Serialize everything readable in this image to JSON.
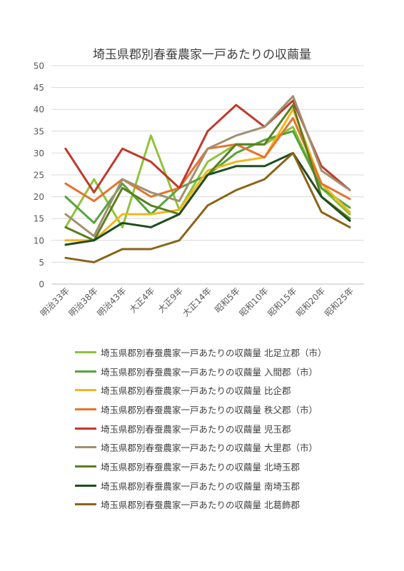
{
  "chart_data": {
    "type": "line",
    "title": "埼玉県郡別春蚕農家一戸あたりの収繭量",
    "xlabel": "",
    "ylabel": "",
    "ylim": [
      0,
      50
    ],
    "yticks": [
      0,
      5,
      10,
      15,
      20,
      25,
      30,
      35,
      40,
      45,
      50
    ],
    "grid": true,
    "legend_position": "bottom",
    "categories": [
      "明治33年",
      "明治38年",
      "明治43年",
      "大正4年",
      "大正9年",
      "大正14年",
      "昭和5年",
      "昭和10年",
      "昭和15年",
      "昭和20年",
      "昭和25年"
    ],
    "series": [
      {
        "name": "埼玉県郡別春蚕農家一戸あたりの収繭量 北足立郡（市）",
        "color": "#8fc33a",
        "values": [
          13,
          24,
          13,
          34,
          17,
          28,
          32,
          32,
          36,
          22,
          16
        ]
      },
      {
        "name": "埼玉県郡別春蚕農家一戸あたりの収繭量 入間郡（市）",
        "color": "#57a33c",
        "values": [
          20,
          14,
          23,
          16,
          22,
          25,
          30,
          33,
          35,
          22,
          17.5
        ]
      },
      {
        "name": "埼玉県郡別春蚕農家一戸あたりの収繭量 比企郡",
        "color": "#f2b61e",
        "values": [
          10,
          10,
          16,
          16,
          17,
          26,
          28,
          29,
          40,
          23,
          16.5
        ]
      },
      {
        "name": "埼玉県郡別春蚕農家一戸あたりの収繭量 秩父郡（市）",
        "color": "#e8712c",
        "values": [
          23,
          19,
          24,
          20,
          22,
          31,
          32,
          29,
          38,
          23,
          19.5
        ]
      },
      {
        "name": "埼玉県郡別春蚕農家一戸あたりの収繭量 児玉郡",
        "color": "#c0392b",
        "values": [
          31,
          21,
          31,
          28,
          22,
          35,
          41,
          36,
          42,
          27,
          21.5
        ]
      },
      {
        "name": "埼玉県郡別春蚕農家一戸あたりの収繭量 大里郡（市）",
        "color": "#a08f70",
        "values": [
          16,
          11,
          24,
          21,
          19,
          31,
          34,
          36,
          43,
          26,
          21.5
        ]
      },
      {
        "name": "埼玉県郡別春蚕農家一戸あたりの収繭量 北埼玉郡",
        "color": "#5a7f23",
        "values": [
          13,
          10,
          22,
          18,
          16,
          25,
          32,
          32,
          41,
          20,
          15
        ]
      },
      {
        "name": "埼玉県郡別春蚕農家一戸あたりの収繭量 南埼玉郡",
        "color": "#1f4d1f",
        "values": [
          9,
          10,
          14,
          13,
          16,
          25,
          27,
          27,
          30,
          20,
          14.5
        ]
      },
      {
        "name": "埼玉県郡別春蚕農家一戸あたりの収繭量 北葛飾郡",
        "color": "#8a6418",
        "values": [
          6,
          5,
          8,
          8,
          10,
          18,
          21.5,
          24,
          30,
          16.5,
          13
        ]
      }
    ]
  }
}
